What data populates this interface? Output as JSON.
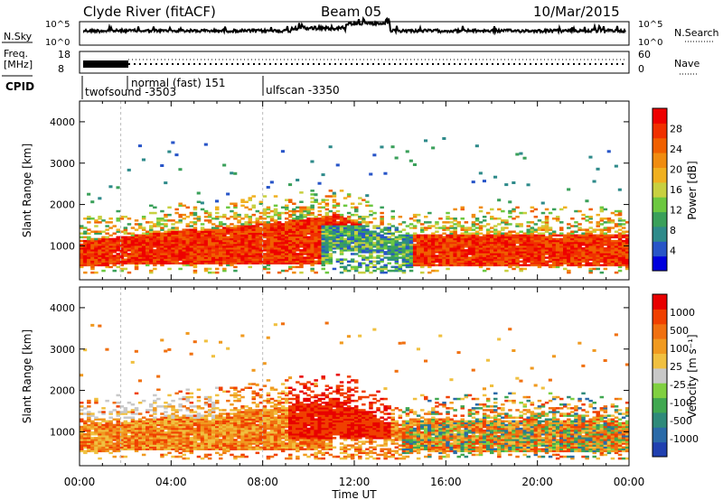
{
  "header": {
    "station": "Clyde River (fitACF)",
    "beam": "Beam 05",
    "date": "10/Mar/2015"
  },
  "noise_panel": {
    "left_label": "N.Sky",
    "right_label": "N.Search",
    "ticks_left": [
      "10^5",
      "10^0"
    ],
    "ticks_right": [
      "10^5",
      "10^0"
    ]
  },
  "freq_panel": {
    "left_label_1": "Freq.",
    "left_label_2": "[MHz]",
    "ticks_left": [
      "18",
      "8"
    ],
    "ticks_right": [
      "60",
      "0"
    ],
    "right_label": "Nave"
  },
  "cpid_panel": {
    "label": "CPID",
    "modes": [
      {
        "name": "twofsound -3503",
        "start_hour": 0
      },
      {
        "name": "normal (fast) 151",
        "start_hour": 1.8
      },
      {
        "name": "ulfscan -3350",
        "start_hour": 8.0
      }
    ]
  },
  "chart_data": [
    {
      "type": "heatmap",
      "title": "Power",
      "xlabel": "",
      "ylabel": "Slant Range [km]",
      "xlim": [
        0,
        24
      ],
      "ylim": [
        180,
        4500
      ],
      "yticks": [
        "1000",
        "2000",
        "3000",
        "4000"
      ],
      "colorbar": {
        "label": "Power [dB]",
        "ticks": [
          "28",
          "24",
          "20",
          "16",
          "12",
          "8",
          "4"
        ],
        "colors": [
          "#0000dd",
          "#2855c8",
          "#2e8a8a",
          "#3aa05a",
          "#6cc840",
          "#c8d040",
          "#f0b020",
          "#f08c10",
          "#f06000",
          "#f03000",
          "#ee0000"
        ]
      }
    },
    {
      "type": "heatmap",
      "title": "Velocity",
      "xlabel": "Time UT",
      "ylabel": "Slant Range [km]",
      "xlim": [
        0,
        24
      ],
      "ylim": [
        180,
        4500
      ],
      "xticks": [
        "00:00",
        "04:00",
        "08:00",
        "12:00",
        "16:00",
        "20:00",
        "00:00"
      ],
      "yticks": [
        "1000",
        "2000",
        "3000",
        "4000"
      ],
      "colorbar": {
        "label": "Velocity [m s⁻¹]",
        "ticks": [
          "1000",
          "500",
          "100",
          "25",
          "-25",
          "-100",
          "-500",
          "-1000"
        ],
        "colors": [
          "#2040b0",
          "#2a6aa8",
          "#2e8a7a",
          "#40a850",
          "#80d040",
          "#c8c8c8",
          "#f0c040",
          "#f09a20",
          "#f07010",
          "#f04000",
          "#e80000"
        ]
      }
    }
  ]
}
